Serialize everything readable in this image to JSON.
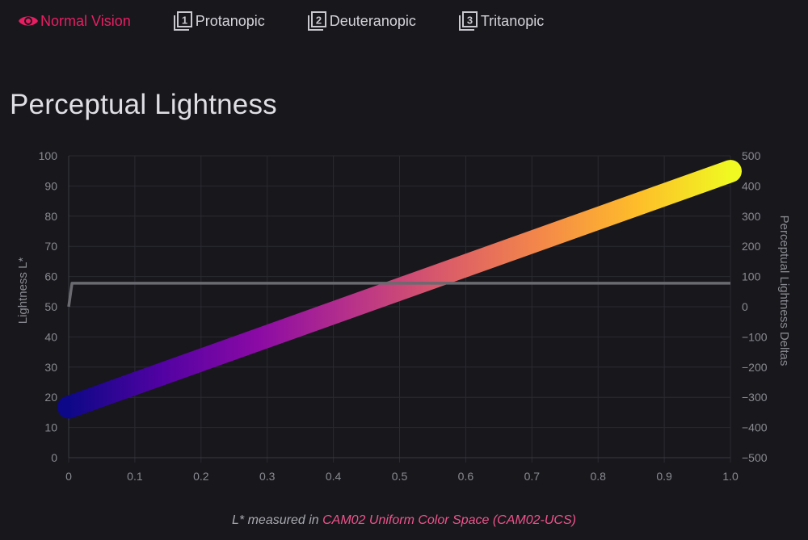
{
  "tabs": [
    {
      "label": "Normal Vision",
      "icon": "eye-icon",
      "active": true
    },
    {
      "label": "Protanopic",
      "icon": "filter-1-icon",
      "active": false
    },
    {
      "label": "Deuteranopic",
      "icon": "filter-2-icon",
      "active": false
    },
    {
      "label": "Tritanopic",
      "icon": "filter-3-icon",
      "active": false
    }
  ],
  "colors": {
    "accent": "#ea1d63",
    "background": "#17171c",
    "grid": "#2a2a31",
    "delta_line": "#6a6a70",
    "gradient": [
      "#0d0887",
      "#5302a3",
      "#8b0aa5",
      "#b83289",
      "#db5c68",
      "#f48849",
      "#febc2a",
      "#f0f921"
    ]
  },
  "title": "Perceptual Lightness",
  "chart_data": {
    "type": "line",
    "x_ticks": [
      "0",
      "0.1",
      "0.2",
      "0.3",
      "0.4",
      "0.5",
      "0.6",
      "0.7",
      "0.8",
      "0.9",
      "1.0"
    ],
    "y_left_ticks": [
      "0",
      "10",
      "20",
      "30",
      "40",
      "50",
      "60",
      "70",
      "80",
      "90",
      "100"
    ],
    "y_right_ticks": [
      "−500",
      "−400",
      "−300",
      "−200",
      "−100",
      "0",
      "100",
      "200",
      "300",
      "400",
      "500"
    ],
    "xlim": [
      0,
      1
    ],
    "ylim_left": [
      0,
      100
    ],
    "ylim_right": [
      -500,
      500
    ],
    "ylabel_left": "Lightness L*",
    "ylabel_right": "Perceptual Lightness Deltas",
    "grid": true,
    "series": [
      {
        "axis": "left",
        "style": "gradient-thick",
        "x": [
          0,
          1
        ],
        "y": [
          16.7,
          94.9
        ]
      },
      {
        "axis": "right",
        "style": "flat",
        "x": [
          0,
          0.005,
          1
        ],
        "y": [
          0,
          78,
          78
        ]
      }
    ]
  },
  "caption": {
    "prefix": "L* measured in ",
    "link": "CAM02 Uniform Color Space (CAM02-UCS)"
  }
}
